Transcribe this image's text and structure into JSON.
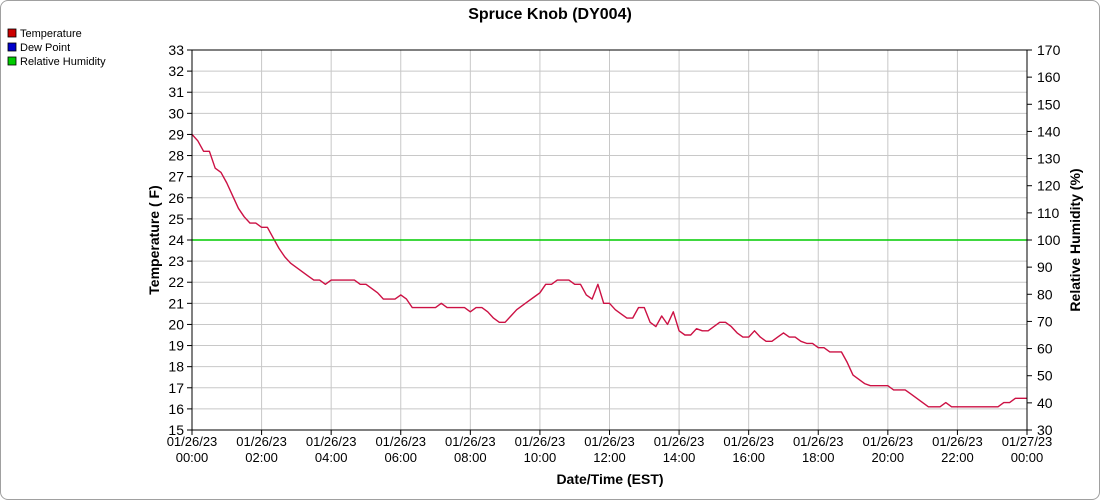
{
  "chart_data": {
    "type": "line",
    "title": "Spruce Knob (DY004)",
    "xlabel": "Date/Time (EST)",
    "ylabel": "Temperature ( F)",
    "y2label": "Relative Humidity (%)",
    "ylim": [
      15,
      33
    ],
    "y2lim": [
      30,
      170
    ],
    "grid": true,
    "legend_position": "top-left",
    "legend": [
      {
        "name": "Temperature",
        "color": "#cc0000"
      },
      {
        "name": "Dew Point",
        "color": "#0000cc"
      },
      {
        "name": "Relative Humidity",
        "color": "#00cc00"
      }
    ],
    "x_ticks": [
      {
        "date": "01/26/23",
        "time": "00:00"
      },
      {
        "date": "01/26/23",
        "time": "02:00"
      },
      {
        "date": "01/26/23",
        "time": "04:00"
      },
      {
        "date": "01/26/23",
        "time": "06:00"
      },
      {
        "date": "01/26/23",
        "time": "08:00"
      },
      {
        "date": "01/26/23",
        "time": "10:00"
      },
      {
        "date": "01/26/23",
        "time": "12:00"
      },
      {
        "date": "01/26/23",
        "time": "14:00"
      },
      {
        "date": "01/26/23",
        "time": "16:00"
      },
      {
        "date": "01/26/23",
        "time": "18:00"
      },
      {
        "date": "01/26/23",
        "time": "20:00"
      },
      {
        "date": "01/26/23",
        "time": "22:00"
      },
      {
        "date": "01/27/23",
        "time": "00:00"
      }
    ],
    "y_ticks": [
      15,
      16,
      17,
      18,
      19,
      20,
      21,
      22,
      23,
      24,
      25,
      26,
      27,
      28,
      29,
      30,
      31,
      32,
      33
    ],
    "y2_ticks": [
      30,
      40,
      50,
      60,
      70,
      80,
      90,
      100,
      110,
      120,
      130,
      140,
      150,
      160,
      170
    ],
    "series": [
      {
        "name": "Temperature",
        "color": "#cc1144",
        "axis": "left",
        "points": [
          [
            "01/26/23 00:00",
            29.0
          ],
          [
            "01/26/23 00:10",
            28.7
          ],
          [
            "01/26/23 00:20",
            28.2
          ],
          [
            "01/26/23 00:30",
            28.2
          ],
          [
            "01/26/23 00:40",
            27.4
          ],
          [
            "01/26/23 00:50",
            27.2
          ],
          [
            "01/26/23 01:00",
            26.7
          ],
          [
            "01/26/23 01:10",
            26.1
          ],
          [
            "01/26/23 01:20",
            25.5
          ],
          [
            "01/26/23 01:30",
            25.1
          ],
          [
            "01/26/23 01:40",
            24.8
          ],
          [
            "01/26/23 01:50",
            24.8
          ],
          [
            "01/26/23 02:00",
            24.6
          ],
          [
            "01/26/23 02:10",
            24.6
          ],
          [
            "01/26/23 02:20",
            24.1
          ],
          [
            "01/26/23 02:30",
            23.6
          ],
          [
            "01/26/23 02:40",
            23.2
          ],
          [
            "01/26/23 02:50",
            22.9
          ],
          [
            "01/26/23 03:00",
            22.7
          ],
          [
            "01/26/23 03:10",
            22.5
          ],
          [
            "01/26/23 03:20",
            22.3
          ],
          [
            "01/26/23 03:30",
            22.1
          ],
          [
            "01/26/23 03:40",
            22.1
          ],
          [
            "01/26/23 03:50",
            21.9
          ],
          [
            "01/26/23 04:00",
            22.1
          ],
          [
            "01/26/23 04:10",
            22.1
          ],
          [
            "01/26/23 04:20",
            22.1
          ],
          [
            "01/26/23 04:30",
            22.1
          ],
          [
            "01/26/23 04:40",
            22.1
          ],
          [
            "01/26/23 04:50",
            21.9
          ],
          [
            "01/26/23 05:00",
            21.9
          ],
          [
            "01/26/23 05:10",
            21.7
          ],
          [
            "01/26/23 05:20",
            21.5
          ],
          [
            "01/26/23 05:30",
            21.2
          ],
          [
            "01/26/23 05:40",
            21.2
          ],
          [
            "01/26/23 05:50",
            21.2
          ],
          [
            "01/26/23 06:00",
            21.4
          ],
          [
            "01/26/23 06:10",
            21.2
          ],
          [
            "01/26/23 06:20",
            20.8
          ],
          [
            "01/26/23 06:30",
            20.8
          ],
          [
            "01/26/23 06:40",
            20.8
          ],
          [
            "01/26/23 06:50",
            20.8
          ],
          [
            "01/26/23 07:00",
            20.8
          ],
          [
            "01/26/23 07:10",
            21.0
          ],
          [
            "01/26/23 07:20",
            20.8
          ],
          [
            "01/26/23 07:30",
            20.8
          ],
          [
            "01/26/23 07:40",
            20.8
          ],
          [
            "01/26/23 07:50",
            20.8
          ],
          [
            "01/26/23 08:00",
            20.6
          ],
          [
            "01/26/23 08:10",
            20.8
          ],
          [
            "01/26/23 08:20",
            20.8
          ],
          [
            "01/26/23 08:30",
            20.6
          ],
          [
            "01/26/23 08:40",
            20.3
          ],
          [
            "01/26/23 08:50",
            20.1
          ],
          [
            "01/26/23 09:00",
            20.1
          ],
          [
            "01/26/23 09:10",
            20.4
          ],
          [
            "01/26/23 09:20",
            20.7
          ],
          [
            "01/26/23 09:30",
            20.9
          ],
          [
            "01/26/23 09:40",
            21.1
          ],
          [
            "01/26/23 09:50",
            21.3
          ],
          [
            "01/26/23 10:00",
            21.5
          ],
          [
            "01/26/23 10:10",
            21.9
          ],
          [
            "01/26/23 10:20",
            21.9
          ],
          [
            "01/26/23 10:30",
            22.1
          ],
          [
            "01/26/23 10:40",
            22.1
          ],
          [
            "01/26/23 10:50",
            22.1
          ],
          [
            "01/26/23 11:00",
            21.9
          ],
          [
            "01/26/23 11:10",
            21.9
          ],
          [
            "01/26/23 11:20",
            21.4
          ],
          [
            "01/26/23 11:30",
            21.2
          ],
          [
            "01/26/23 11:40",
            21.9
          ],
          [
            "01/26/23 11:50",
            21.0
          ],
          [
            "01/26/23 12:00",
            21.0
          ],
          [
            "01/26/23 12:10",
            20.7
          ],
          [
            "01/26/23 12:20",
            20.5
          ],
          [
            "01/26/23 12:30",
            20.3
          ],
          [
            "01/26/23 12:40",
            20.3
          ],
          [
            "01/26/23 12:50",
            20.8
          ],
          [
            "01/26/23 13:00",
            20.8
          ],
          [
            "01/26/23 13:10",
            20.1
          ],
          [
            "01/26/23 13:20",
            19.9
          ],
          [
            "01/26/23 13:30",
            20.4
          ],
          [
            "01/26/23 13:40",
            20.0
          ],
          [
            "01/26/23 13:50",
            20.6
          ],
          [
            "01/26/23 14:00",
            19.7
          ],
          [
            "01/26/23 14:10",
            19.5
          ],
          [
            "01/26/23 14:20",
            19.5
          ],
          [
            "01/26/23 14:30",
            19.8
          ],
          [
            "01/26/23 14:40",
            19.7
          ],
          [
            "01/26/23 14:50",
            19.7
          ],
          [
            "01/26/23 15:00",
            19.9
          ],
          [
            "01/26/23 15:10",
            20.1
          ],
          [
            "01/26/23 15:20",
            20.1
          ],
          [
            "01/26/23 15:30",
            19.9
          ],
          [
            "01/26/23 15:40",
            19.6
          ],
          [
            "01/26/23 15:50",
            19.4
          ],
          [
            "01/26/23 16:00",
            19.4
          ],
          [
            "01/26/23 16:10",
            19.7
          ],
          [
            "01/26/23 16:20",
            19.4
          ],
          [
            "01/26/23 16:30",
            19.2
          ],
          [
            "01/26/23 16:40",
            19.2
          ],
          [
            "01/26/23 16:50",
            19.4
          ],
          [
            "01/26/23 17:00",
            19.6
          ],
          [
            "01/26/23 17:10",
            19.4
          ],
          [
            "01/26/23 17:20",
            19.4
          ],
          [
            "01/26/23 17:30",
            19.2
          ],
          [
            "01/26/23 17:40",
            19.1
          ],
          [
            "01/26/23 17:50",
            19.1
          ],
          [
            "01/26/23 18:00",
            18.9
          ],
          [
            "01/26/23 18:10",
            18.9
          ],
          [
            "01/26/23 18:20",
            18.7
          ],
          [
            "01/26/23 18:30",
            18.7
          ],
          [
            "01/26/23 18:40",
            18.7
          ],
          [
            "01/26/23 18:50",
            18.2
          ],
          [
            "01/26/23 19:00",
            17.6
          ],
          [
            "01/26/23 19:10",
            17.4
          ],
          [
            "01/26/23 19:20",
            17.2
          ],
          [
            "01/26/23 19:30",
            17.1
          ],
          [
            "01/26/23 19:40",
            17.1
          ],
          [
            "01/26/23 19:50",
            17.1
          ],
          [
            "01/26/23 20:00",
            17.1
          ],
          [
            "01/26/23 20:10",
            16.9
          ],
          [
            "01/26/23 20:20",
            16.9
          ],
          [
            "01/26/23 20:30",
            16.9
          ],
          [
            "01/26/23 20:40",
            16.7
          ],
          [
            "01/26/23 20:50",
            16.5
          ],
          [
            "01/26/23 21:00",
            16.3
          ],
          [
            "01/26/23 21:10",
            16.1
          ],
          [
            "01/26/23 21:20",
            16.1
          ],
          [
            "01/26/23 21:30",
            16.1
          ],
          [
            "01/26/23 21:40",
            16.3
          ],
          [
            "01/26/23 21:50",
            16.1
          ],
          [
            "01/26/23 22:00",
            16.1
          ],
          [
            "01/26/23 22:10",
            16.1
          ],
          [
            "01/26/23 22:20",
            16.1
          ],
          [
            "01/26/23 22:30",
            16.1
          ],
          [
            "01/26/23 22:40",
            16.1
          ],
          [
            "01/26/23 22:50",
            16.1
          ],
          [
            "01/26/23 23:00",
            16.1
          ],
          [
            "01/26/23 23:10",
            16.1
          ],
          [
            "01/26/23 23:20",
            16.3
          ],
          [
            "01/26/23 23:30",
            16.3
          ],
          [
            "01/26/23 23:40",
            16.5
          ],
          [
            "01/26/23 23:50",
            16.5
          ],
          [
            "01/27/23 00:00",
            16.5
          ]
        ]
      },
      {
        "name": "Relative Humidity",
        "color": "#00cc00",
        "axis": "right",
        "points": [
          [
            "01/26/23 00:00",
            100
          ],
          [
            "01/27/23 00:00",
            100
          ]
        ]
      }
    ]
  }
}
